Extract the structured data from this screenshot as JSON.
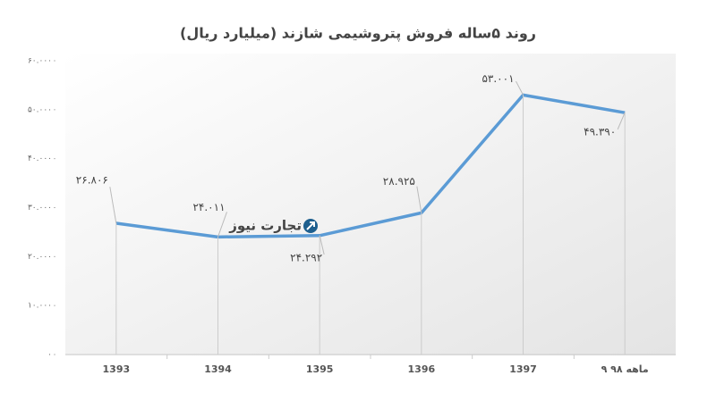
{
  "chart_data": {
    "type": "line",
    "title": "روند ۵ساله فروش پتروشیمی شازند (میلیارد ریال)",
    "watermark": "تجارت نیوز",
    "categories": [
      "1393",
      "1394",
      "1395",
      "1396",
      "1397",
      "۹ ماهه ۹۸"
    ],
    "series": [
      {
        "name": "فروش",
        "color": "#5b9bd5",
        "values": [
          26806,
          24011,
          24292,
          28925,
          53001,
          49390
        ],
        "value_labels": [
          "۲۶.۸۰۶",
          "۲۴.۰۱۱",
          "۲۴.۲۹۲",
          "۲۸.۹۲۵",
          "۵۳.۰۰۱",
          "۴۹.۳۹۰"
        ]
      }
    ],
    "ylim": [
      0,
      60000
    ],
    "yticks": [
      {
        "value": 0,
        "label": "۰"
      },
      {
        "value": 10000,
        "label": "۱۰.۰۰۰"
      },
      {
        "value": 20000,
        "label": "۲۰.۰۰۰"
      },
      {
        "value": 30000,
        "label": "۳۰.۰۰۰"
      },
      {
        "value": 40000,
        "label": "۴۰.۰۰۰"
      },
      {
        "value": 50000,
        "label": "۵۰.۰۰۰"
      },
      {
        "value": 60000,
        "label": "۶۰.۰۰۰"
      }
    ]
  }
}
